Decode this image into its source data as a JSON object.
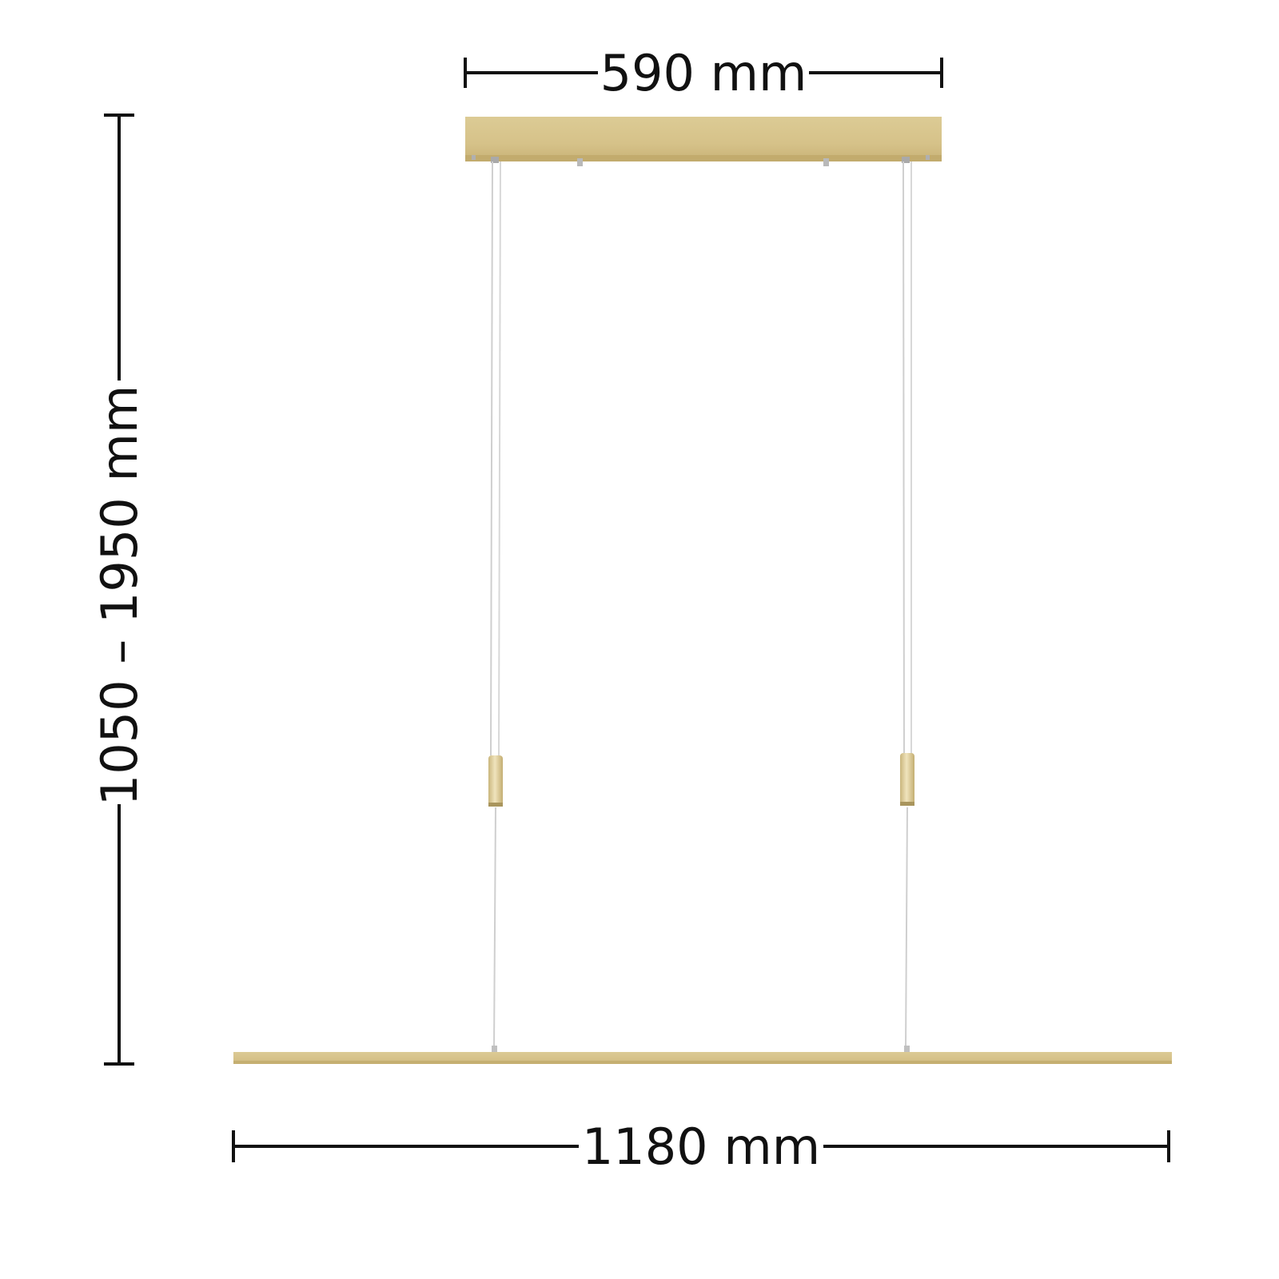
{
  "dimensions": {
    "canopy_width": "590 mm",
    "bar_length": "1180 mm",
    "height_range": "1050 – 1950 mm"
  },
  "colors": {
    "brass": "#d9c58e",
    "brass_light": "#e6d7a6",
    "brass_dark": "#c7b174",
    "line": "#111111",
    "cable": "#c8c8c8",
    "background": "#ffffff"
  },
  "product": {
    "canopy_icon": "ceiling-canopy",
    "bar_icon": "led-bar",
    "adjuster_icon": "cable-adjuster"
  }
}
